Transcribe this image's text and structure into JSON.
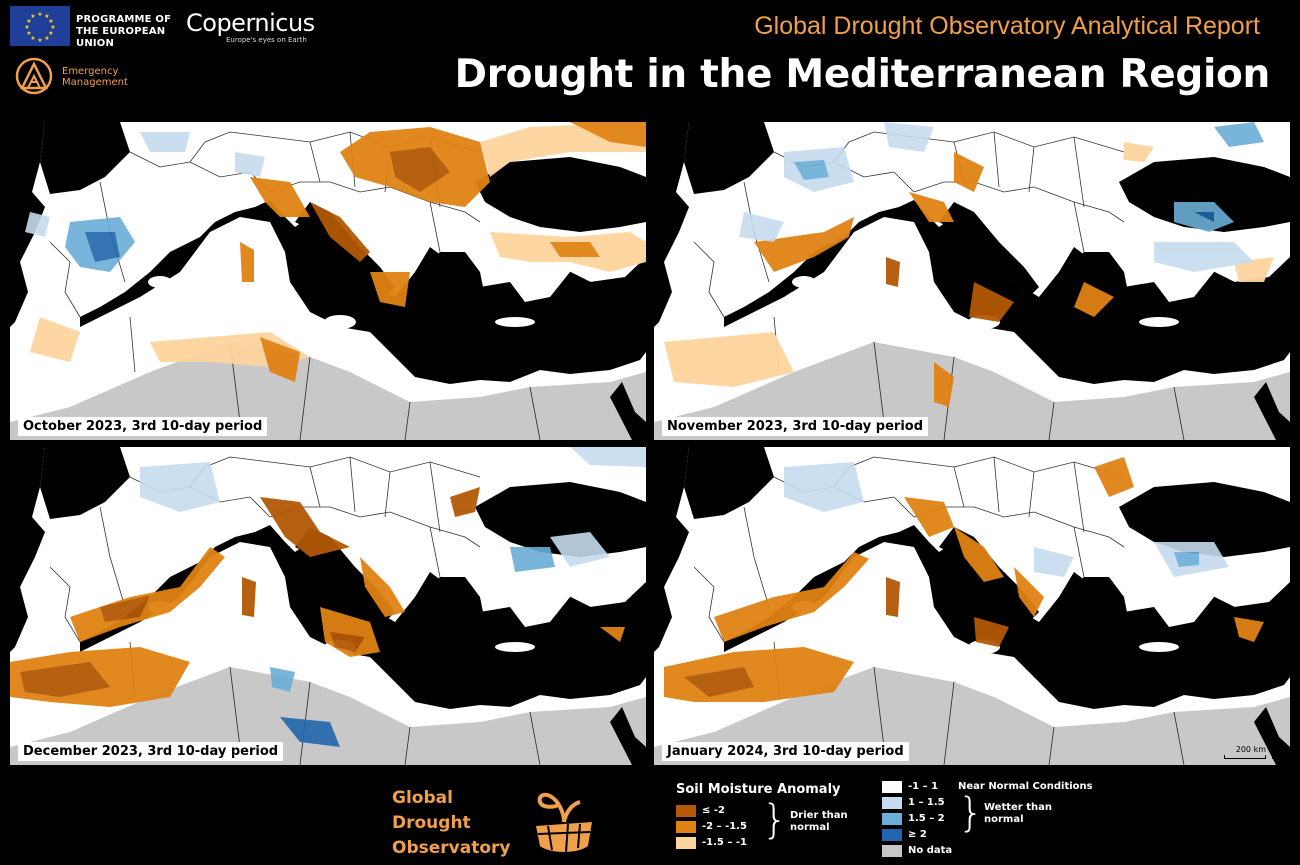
{
  "header": {
    "eu_programme": "PROGRAMME OF THE EUROPEAN UNION",
    "copernicus_name": "Copernicus",
    "copernicus_tagline": "Europe's eyes on Earth",
    "service": "Emergency Management",
    "report_title": "Global Drought Observatory Analytical Report",
    "main_title": "Drought in the Mediterranean Region"
  },
  "maps": [
    {
      "label": "October 2023, 3rd 10-day period"
    },
    {
      "label": "November 2023, 3rd  10-day period"
    },
    {
      "label": "December 2023, 3rd 10-day period"
    },
    {
      "label": "January 2024, 3rd 10-day period"
    }
  ],
  "scalebar": "200 km",
  "gdo_logo_text": [
    "Global",
    "Drought",
    "Observatory"
  ],
  "legend": {
    "title": "Soil Moisture Anomaly",
    "dry_classes": [
      {
        "label": "≤ -2",
        "color": "#b35806"
      },
      {
        "label": "-2 – -1.5",
        "color": "#e08214"
      },
      {
        "label": "-1.5 – -1",
        "color": "#fdd49e"
      }
    ],
    "dry_group": "Drier than normal",
    "normal_class": {
      "label": "-1 – 1",
      "color": "#ffffff"
    },
    "normal_group": "Near Normal Conditions",
    "wet_classes": [
      {
        "label": "1 – 1.5",
        "color": "#c6dbef"
      },
      {
        "label": "1.5 – 2",
        "color": "#6baed6"
      },
      {
        "label": "≥ 2",
        "color": "#2166ac"
      }
    ],
    "wet_group": "Wetter than normal",
    "nodata": {
      "label": "No data",
      "color": "#c8c8c8"
    }
  },
  "colors": {
    "accent": "#f0a04a",
    "sea": "#000000",
    "land": "#ffffff",
    "desert": "#c8c8c8"
  }
}
